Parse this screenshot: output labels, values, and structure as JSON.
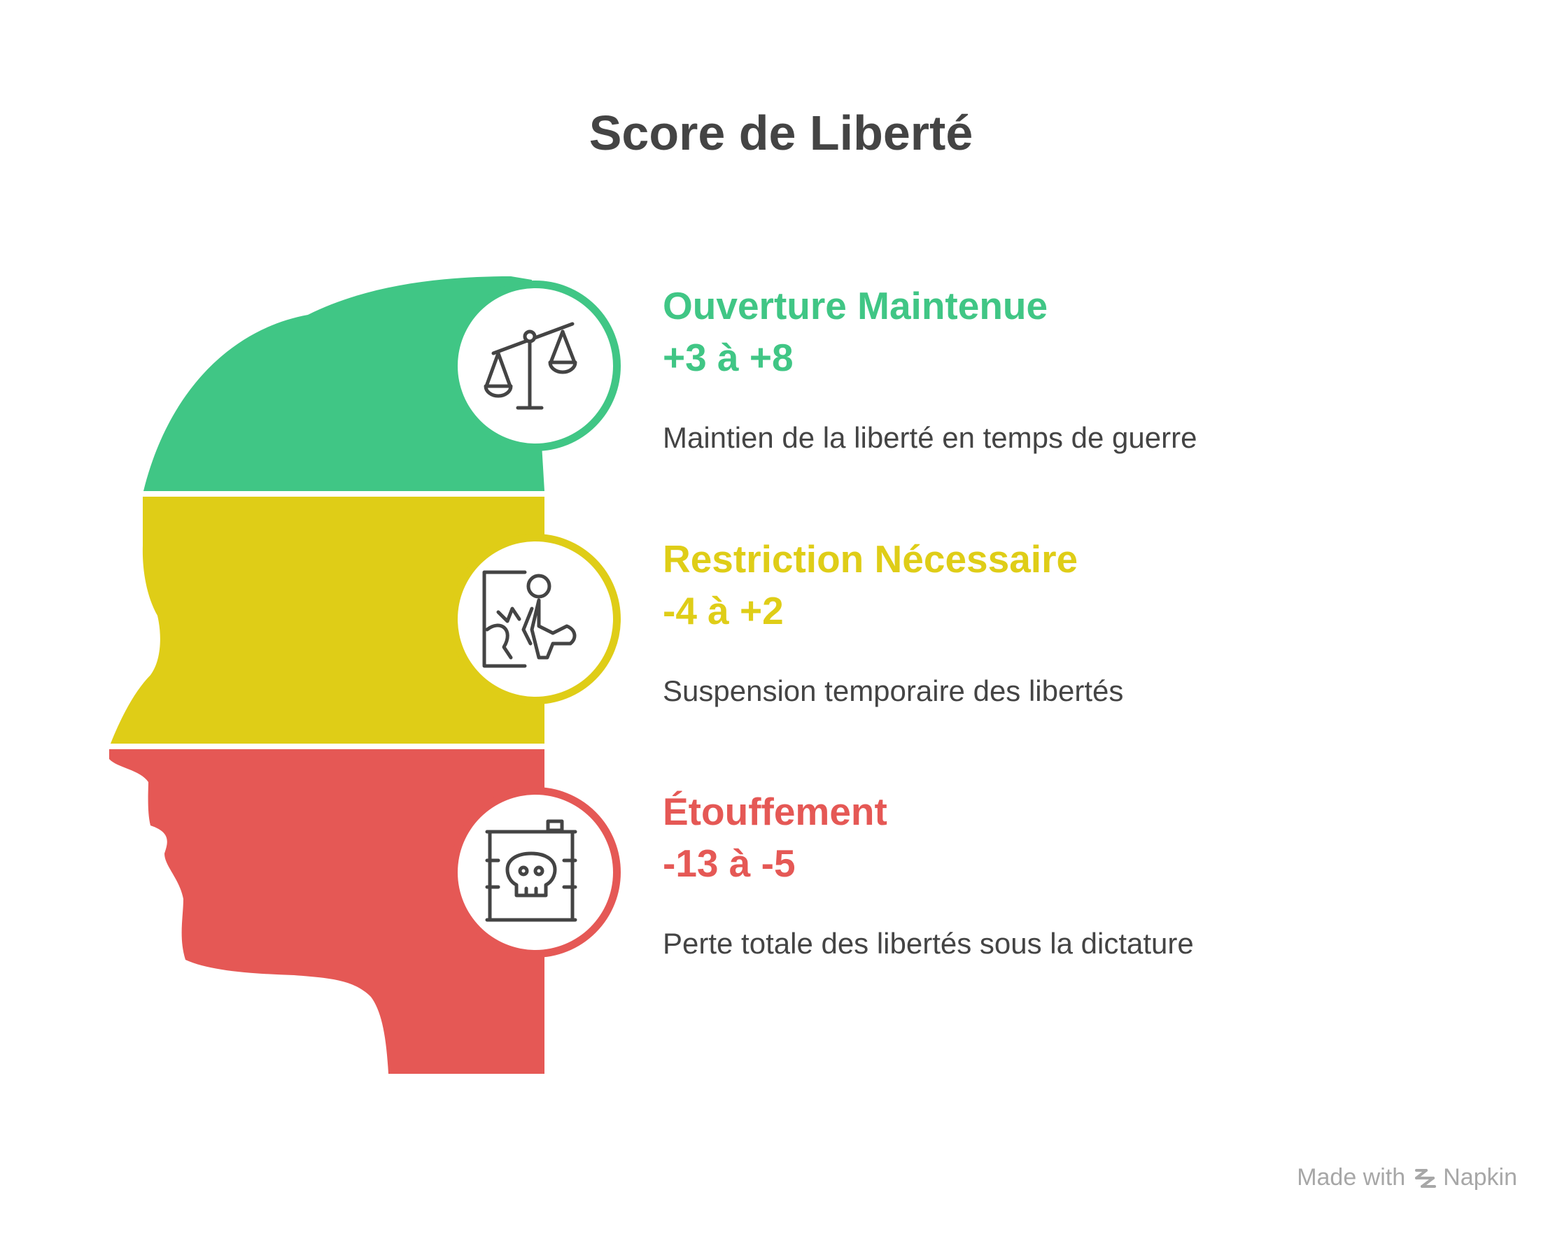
{
  "title": "Score de Liberté",
  "colors": {
    "green": "#40c685",
    "yellow": "#dfcd17",
    "red": "#e55855",
    "text": "#444444",
    "footer": "#a7a7a7"
  },
  "levels": [
    {
      "title": "Ouverture Maintenue",
      "range": "+3 à +8",
      "description": "Maintien de la liberté en temps de guerre",
      "color": "#40c685",
      "icon": "balance-scale-icon"
    },
    {
      "title": "Restriction Nécessaire",
      "range": "-4 à +2",
      "description": "Suspension temporaire des libertés",
      "color": "#dfcd17",
      "icon": "person-restrained-icon"
    },
    {
      "title": "Étouffement",
      "range": "-13 à -5",
      "description": "Perte totale des libertés sous la dictature",
      "color": "#e55855",
      "icon": "skull-barrel-icon"
    }
  ],
  "footer": {
    "made_with": "Made with",
    "brand": "Napkin"
  }
}
